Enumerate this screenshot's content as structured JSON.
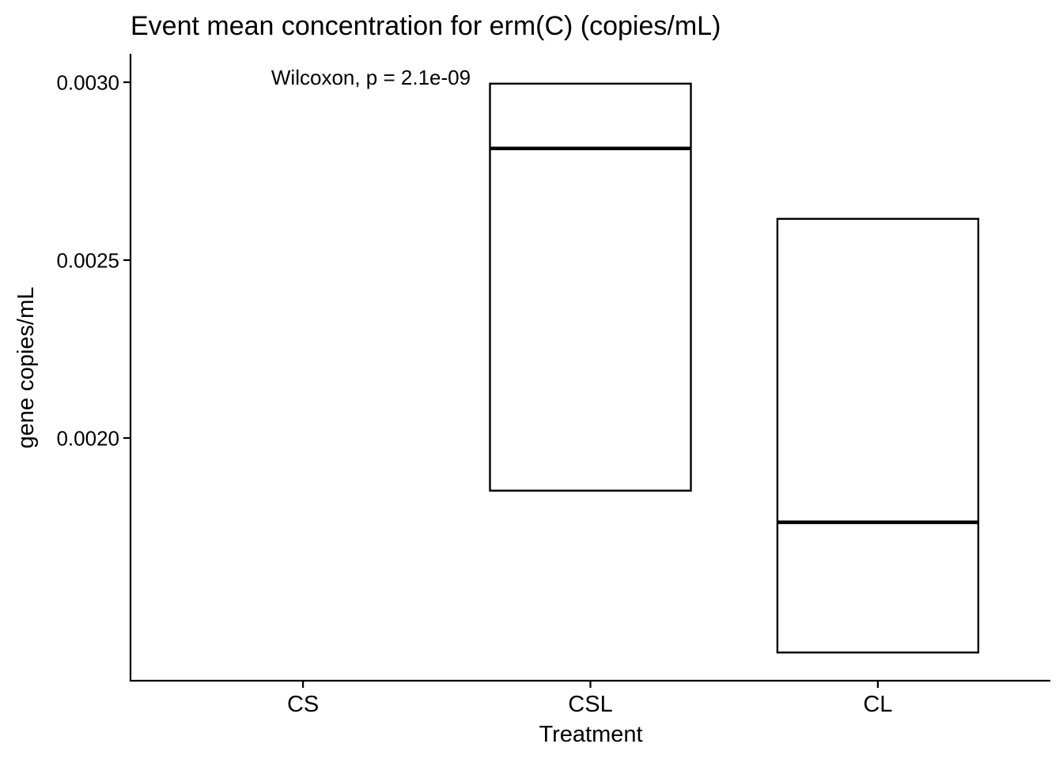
{
  "chart_data": {
    "type": "box",
    "title": "Event mean concentration for erm(C) (copies/mL)",
    "xlabel": "Treatment",
    "ylabel": "gene copies/mL",
    "categories": [
      "CS",
      "CSL",
      "CL"
    ],
    "yticks": [
      {
        "value": 0.002,
        "label": "0.0020"
      },
      {
        "value": 0.0025,
        "label": "0.0025"
      },
      {
        "value": 0.003,
        "label": "0.0030"
      }
    ],
    "ylim": [
      0.00132,
      0.00308
    ],
    "boxes": [
      {
        "category": "CSL",
        "q1": 0.001852,
        "median": 0.002814,
        "q3": 0.002996
      },
      {
        "category": "CL",
        "q1": 0.001397,
        "median": 0.001763,
        "q3": 0.002616
      }
    ],
    "annotation": {
      "text": "Wilcoxon, p = 2.1e-09",
      "x_category": "CS",
      "y": 0.003
    },
    "grid": false,
    "legend": "none",
    "colors": {
      "box_stroke": "#000000",
      "box_fill": "#ffffff",
      "axis": "#000000",
      "background": "#ffffff"
    }
  }
}
